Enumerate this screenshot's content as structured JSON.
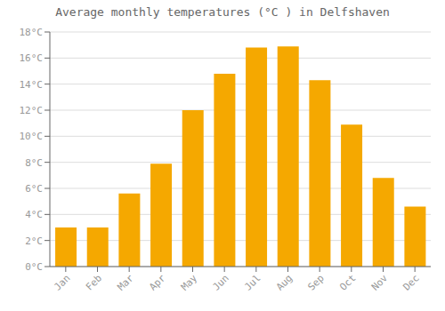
{
  "chart_data": {
    "type": "bar",
    "title": "Average monthly temperatures (°C ) in Delfshaven",
    "categories": [
      "Jan",
      "Feb",
      "Mar",
      "Apr",
      "May",
      "Jun",
      "Jul",
      "Aug",
      "Sep",
      "Oct",
      "Nov",
      "Dec"
    ],
    "values": [
      3.0,
      3.0,
      5.6,
      7.9,
      12.0,
      14.8,
      16.8,
      16.9,
      14.3,
      10.9,
      6.8,
      4.6
    ],
    "color": "#F5A800",
    "ylim": [
      0,
      18
    ],
    "yticks": [
      {
        "value": 0,
        "label": "0°C"
      },
      {
        "value": 2,
        "label": "2°C"
      },
      {
        "value": 4,
        "label": "4°C"
      },
      {
        "value": 6,
        "label": "6°C"
      },
      {
        "value": 8,
        "label": "8°C"
      },
      {
        "value": 10,
        "label": "10°C"
      },
      {
        "value": 12,
        "label": "12°C"
      },
      {
        "value": 14,
        "label": "14°C"
      },
      {
        "value": 16,
        "label": "16°C"
      },
      {
        "value": 18,
        "label": "18°C"
      }
    ],
    "grid": true
  }
}
